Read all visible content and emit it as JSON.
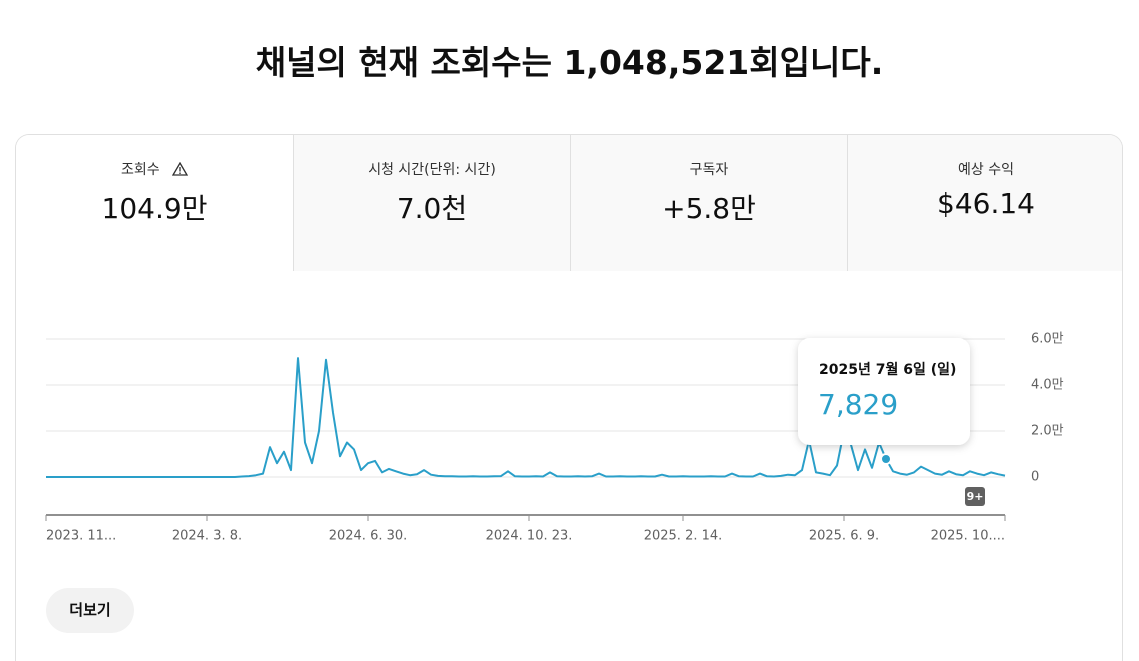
{
  "header": {
    "title": "채널의 현재 조회수는 1,048,521회입니다."
  },
  "tabs": [
    {
      "label": "조회수",
      "value": "104.9만"
    },
    {
      "label": "시청 시간(단위: 시간)",
      "value": "7.0천"
    },
    {
      "label": "구독자",
      "value": "+5.8만"
    },
    {
      "label": "예상 수익",
      "value": "$46.14"
    }
  ],
  "chart_data": {
    "type": "line",
    "color": "#2a9fc9",
    "values": [
      0,
      0,
      0,
      0,
      0,
      0,
      0,
      0,
      0,
      0,
      0,
      0,
      0,
      0,
      0,
      0,
      0,
      0,
      0,
      0,
      0,
      0,
      0,
      0,
      0,
      0,
      0,
      0,
      200,
      400,
      800,
      1500,
      13000,
      6000,
      11000,
      3000,
      51700,
      15000,
      6000,
      20000,
      51000,
      28000,
      9000,
      15000,
      12000,
      3000,
      6000,
      7000,
      2000,
      3500,
      2500,
      1500,
      800,
      1200,
      3000,
      1000,
      500,
      300,
      300,
      200,
      200,
      300,
      200,
      200,
      300,
      400,
      2500,
      300,
      200,
      200,
      300,
      200,
      2000,
      300,
      200,
      200,
      300,
      200,
      300,
      1500,
      200,
      200,
      300,
      200,
      200,
      300,
      200,
      200,
      1000,
      200,
      200,
      300,
      200,
      200,
      200,
      300,
      200,
      200,
      1500,
      300,
      200,
      200,
      1500,
      300,
      200,
      500,
      1000,
      800,
      3000,
      16000,
      2000,
      1500,
      800,
      5000,
      20000,
      14000,
      3000,
      12000,
      4000,
      15000,
      7829,
      2500,
      1500,
      1000,
      2000,
      4500,
      3000,
      1500,
      1000,
      2500,
      1200,
      800,
      2500,
      1500,
      800,
      2000,
      1200,
      600
    ],
    "xlim": [
      0,
      137
    ],
    "xticks": [
      {
        "value": 0,
        "label": "2023. 11..."
      },
      {
        "value": 23,
        "label": "2024. 3. 8."
      },
      {
        "value": 46,
        "label": "2024. 6. 30."
      },
      {
        "value": 69,
        "label": "2024. 10. 23."
      },
      {
        "value": 91,
        "label": "2025. 2. 14."
      },
      {
        "value": 114,
        "label": "2025. 6. 9."
      },
      {
        "value": 137,
        "label": "2025. 10...."
      }
    ],
    "ylim": [
      0,
      60000
    ],
    "yticks": [
      {
        "value": 60000,
        "label": "6.0만"
      },
      {
        "value": 40000,
        "label": "4.0만"
      },
      {
        "value": 20000,
        "label": "2.0만"
      },
      0
    ],
    "grid": true,
    "tooltip": {
      "index": 120,
      "title": "2025년 7월 6일 (일)",
      "label": "7,829"
    },
    "badge": "9+"
  },
  "button": "더보기"
}
